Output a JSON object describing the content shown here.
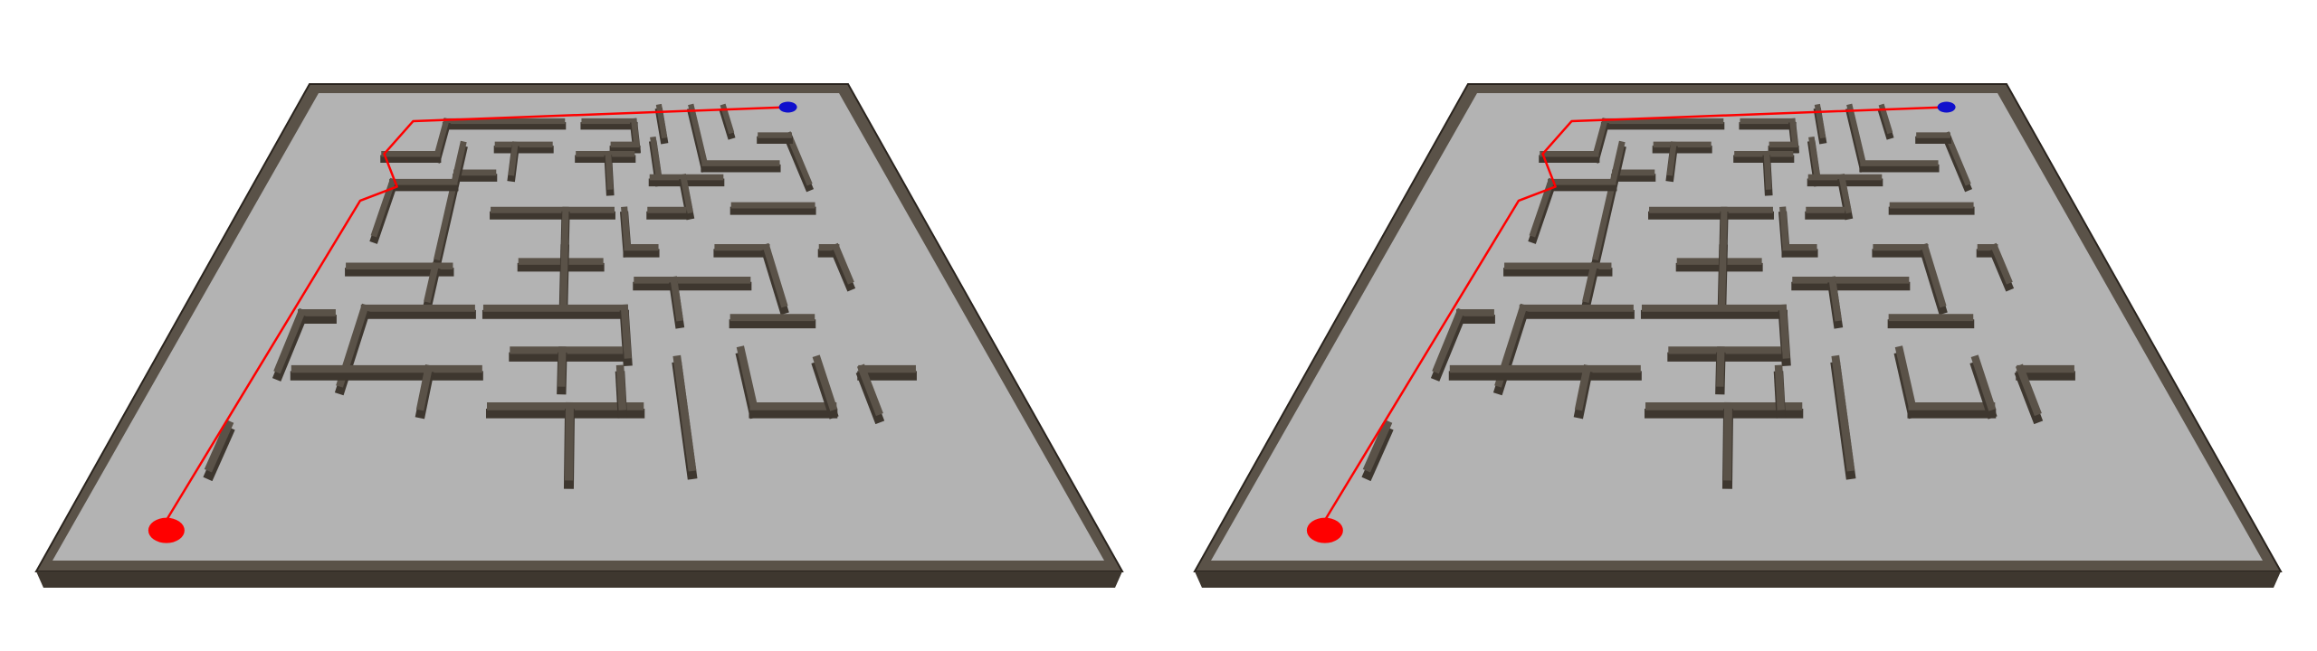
{
  "scene": {
    "views": [
      "left",
      "right"
    ],
    "colors": {
      "background": "#ffffff",
      "floor": "#b3b3b3",
      "wall_top": "#5a5248",
      "wall_side": "#3e372f",
      "wall_border": "#2a241e",
      "path": "#ff0000",
      "start_marker": "#ff0000",
      "goal_marker": "#1010cc"
    }
  }
}
